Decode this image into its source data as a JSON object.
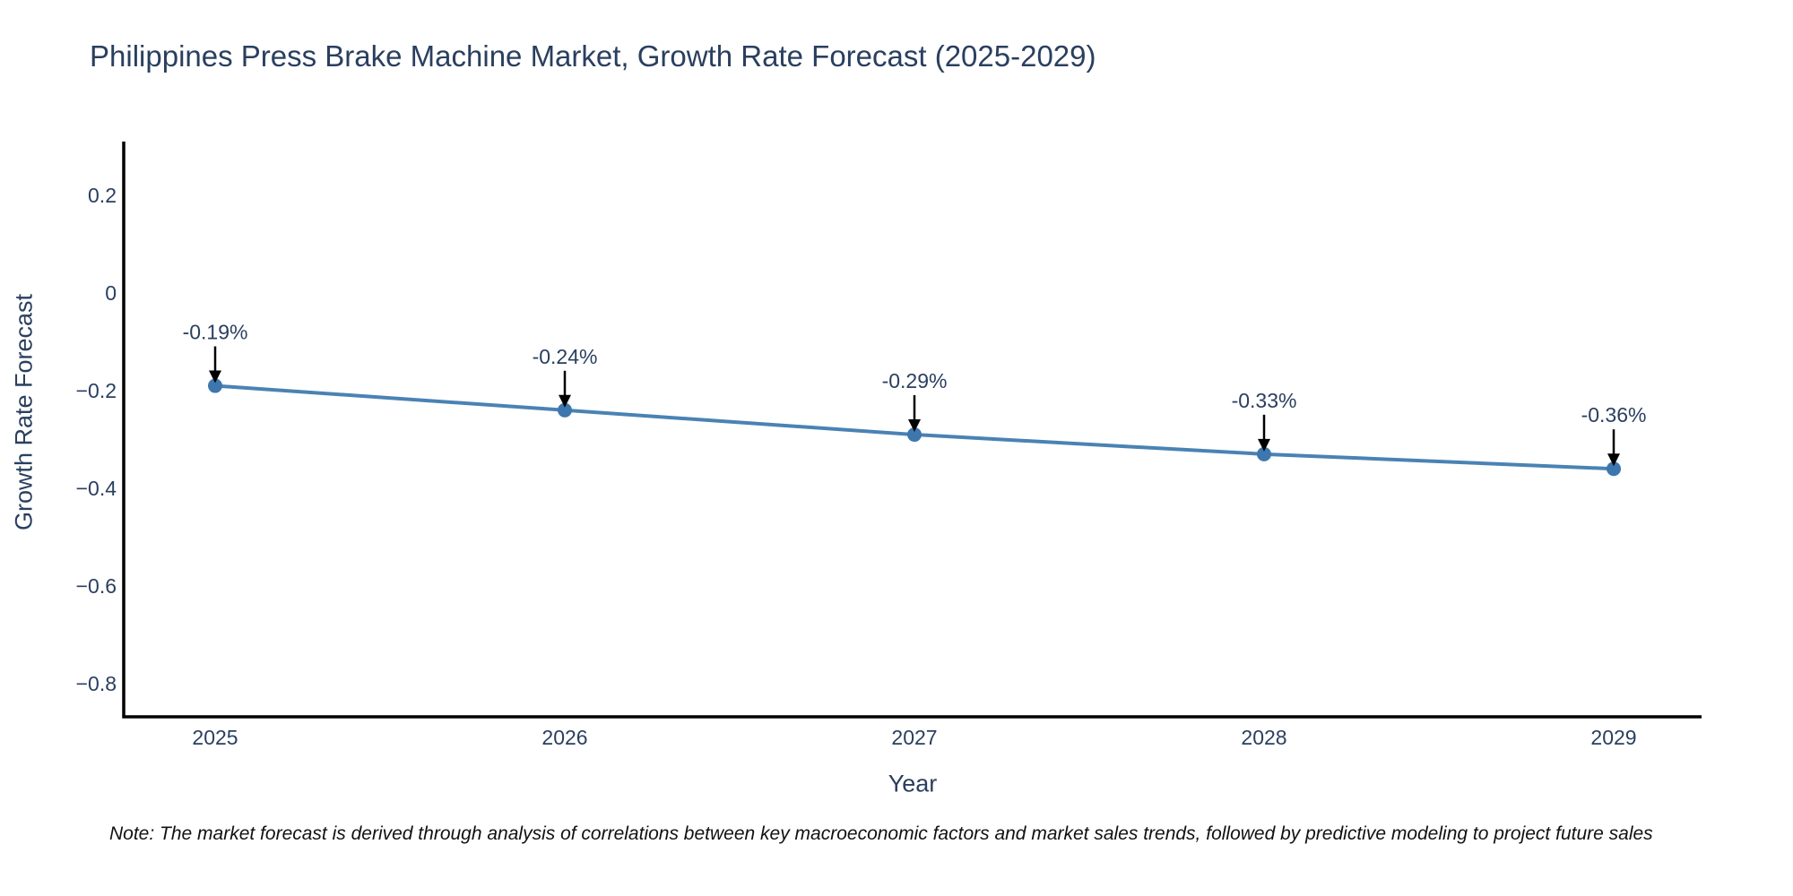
{
  "page": {
    "background": "#ffffff"
  },
  "note": "Note: The market forecast is derived through analysis of correlations between key macroeconomic factors and market sales trends, followed by predictive modeling to project future sales",
  "chart_data": {
    "type": "line",
    "title": "Philippines Press Brake Machine Market, Growth Rate Forecast (2025-2029)",
    "xlabel": "Year",
    "ylabel": "Growth Rate Forecast",
    "categories": [
      "2025",
      "2026",
      "2027",
      "2028",
      "2029"
    ],
    "series": [
      {
        "name": "Growth Rate Forecast",
        "values": [
          -0.19,
          -0.24,
          -0.29,
          -0.33,
          -0.36
        ]
      }
    ],
    "annotations": [
      "-0.19%",
      "-0.24%",
      "-0.29%",
      "-0.33%",
      "-0.36%"
    ],
    "y_axis": {
      "tick_values": [
        0.2,
        0,
        -0.2,
        -0.4,
        -0.6,
        -0.8
      ],
      "tick_labels": [
        "0.2",
        "0",
        "−0.2",
        "−0.4",
        "−0.6",
        "−0.8"
      ],
      "range": [
        -0.9,
        0.31
      ]
    },
    "grid": false,
    "legend": "none",
    "line_color": "#4a82b4",
    "marker_color": "#3d77ae",
    "axis_color": "#000000",
    "text_color": "#2a3f5f",
    "annotation_color": "#000000"
  }
}
